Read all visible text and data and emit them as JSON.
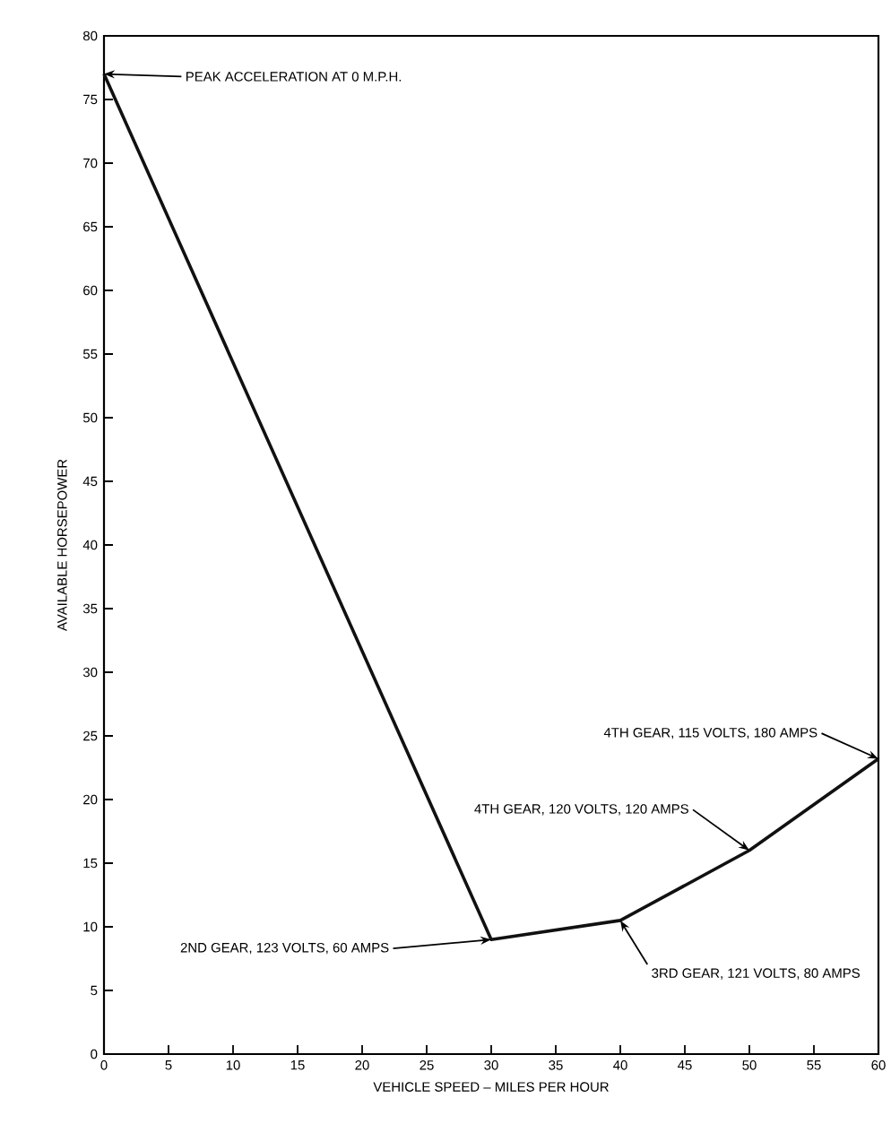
{
  "chart_data": {
    "type": "line",
    "xlabel": "VEHICLE SPEED – MILES PER HOUR",
    "ylabel": "AVAILABLE HORSEPOWER",
    "x": [
      0,
      30,
      40,
      50,
      60
    ],
    "series": [
      {
        "color": "#111111",
        "values": [
          77,
          9,
          10.5,
          16,
          23.2
        ]
      }
    ],
    "xlim": [
      0,
      60
    ],
    "xticks": [
      0,
      5,
      10,
      15,
      20,
      25,
      30,
      35,
      40,
      45,
      50,
      55,
      60
    ],
    "ylim": [
      0,
      80
    ],
    "yticks": [
      0,
      5,
      10,
      15,
      20,
      25,
      30,
      35,
      40,
      45,
      50,
      55,
      60,
      65,
      70,
      75,
      80
    ],
    "grid": false,
    "marker": "none",
    "line_style": "solid",
    "annotations": [
      {
        "text": "PEAK ACCELERATION AT 0 M.P.H.",
        "x": 0,
        "y": 77
      },
      {
        "text": "2ND GEAR, 123 VOLTS, 60 AMPS",
        "x": 30,
        "y": 9
      },
      {
        "text": "3RD GEAR, 121 VOLTS, 80 AMPS",
        "x": 40,
        "y": 10.5
      },
      {
        "text": "4TH GEAR, 120 VOLTS, 120 AMPS",
        "x": 50,
        "y": 16
      },
      {
        "text": "4TH GEAR, 115 VOLTS, 180 AMPS",
        "x": 60,
        "y": 23.2
      }
    ]
  }
}
